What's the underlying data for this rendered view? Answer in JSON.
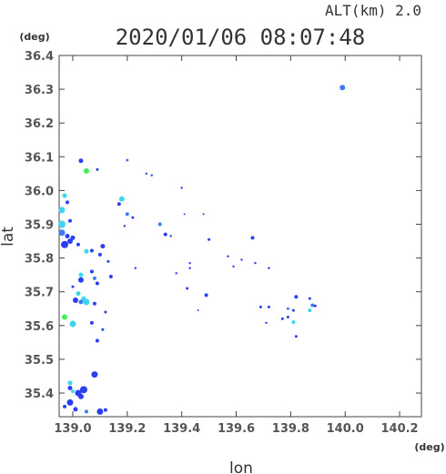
{
  "chart_data": {
    "type": "scatter",
    "title": "2020/01/06 08:07:48",
    "subtitle": "ALT(km)  2.0",
    "xlabel": "lon",
    "ylabel": "lat",
    "x_unit": "(deg)",
    "y_unit": "(deg)",
    "xlim": [
      138.95,
      140.28
    ],
    "ylim": [
      35.33,
      36.4
    ],
    "x_ticks": [
      "139.0",
      "139.2",
      "139.4",
      "139.6",
      "139.8",
      "140.0",
      "140.2"
    ],
    "y_ticks": [
      "36.4",
      "36.3",
      "36.2",
      "36.1",
      "36.0",
      "35.9",
      "35.8",
      "35.7",
      "35.6",
      "35.5",
      "35.4"
    ],
    "grid": false,
    "colors": {
      "blue": "#2b3ff0",
      "mid": "#3b7cf0",
      "cyan": "#3fd4f0",
      "green": "#44ee55"
    },
    "points": [
      {
        "x": 139.99,
        "y": 36.305,
        "s": 3,
        "c": "mid"
      },
      {
        "x": 139.03,
        "y": 36.088,
        "s": 2.5,
        "c": "blue"
      },
      {
        "x": 139.05,
        "y": 36.058,
        "s": 3,
        "c": "green"
      },
      {
        "x": 139.09,
        "y": 36.062,
        "s": 1.5,
        "c": "blue"
      },
      {
        "x": 139.2,
        "y": 36.09,
        "s": 1.5,
        "c": "mid"
      },
      {
        "x": 139.27,
        "y": 36.05,
        "s": 1.2,
        "c": "blue"
      },
      {
        "x": 139.29,
        "y": 36.045,
        "s": 1.2,
        "c": "blue"
      },
      {
        "x": 139.4,
        "y": 36.008,
        "s": 1.2,
        "c": "blue"
      },
      {
        "x": 138.97,
        "y": 35.985,
        "s": 2.5,
        "c": "cyan"
      },
      {
        "x": 138.98,
        "y": 35.965,
        "s": 2,
        "c": "blue"
      },
      {
        "x": 138.96,
        "y": 35.942,
        "s": 3.5,
        "c": "cyan"
      },
      {
        "x": 138.96,
        "y": 35.9,
        "s": 4,
        "c": "cyan"
      },
      {
        "x": 138.99,
        "y": 35.91,
        "s": 2,
        "c": "blue"
      },
      {
        "x": 138.96,
        "y": 35.875,
        "s": 3.5,
        "c": "mid"
      },
      {
        "x": 138.98,
        "y": 35.865,
        "s": 2.5,
        "c": "blue"
      },
      {
        "x": 139.0,
        "y": 35.86,
        "s": 2.5,
        "c": "blue"
      },
      {
        "x": 138.97,
        "y": 35.84,
        "s": 4,
        "c": "blue"
      },
      {
        "x": 138.99,
        "y": 35.85,
        "s": 3,
        "c": "blue"
      },
      {
        "x": 139.02,
        "y": 35.84,
        "s": 2,
        "c": "blue"
      },
      {
        "x": 139.05,
        "y": 35.82,
        "s": 2.5,
        "c": "cyan"
      },
      {
        "x": 139.07,
        "y": 35.822,
        "s": 2,
        "c": "blue"
      },
      {
        "x": 139.11,
        "y": 35.835,
        "s": 2.5,
        "c": "blue"
      },
      {
        "x": 139.1,
        "y": 35.81,
        "s": 2,
        "c": "blue"
      },
      {
        "x": 139.13,
        "y": 35.79,
        "s": 1.5,
        "c": "blue"
      },
      {
        "x": 139.18,
        "y": 35.975,
        "s": 3,
        "c": "cyan"
      },
      {
        "x": 139.17,
        "y": 35.96,
        "s": 2,
        "c": "blue"
      },
      {
        "x": 139.2,
        "y": 35.93,
        "s": 2,
        "c": "mid"
      },
      {
        "x": 139.22,
        "y": 35.92,
        "s": 1.5,
        "c": "blue"
      },
      {
        "x": 139.19,
        "y": 35.895,
        "s": 1.2,
        "c": "blue"
      },
      {
        "x": 139.32,
        "y": 35.9,
        "s": 2,
        "c": "mid"
      },
      {
        "x": 139.34,
        "y": 35.87,
        "s": 2,
        "c": "blue"
      },
      {
        "x": 139.36,
        "y": 35.865,
        "s": 1.2,
        "c": "blue"
      },
      {
        "x": 139.41,
        "y": 35.93,
        "s": 1,
        "c": "blue"
      },
      {
        "x": 139.48,
        "y": 35.93,
        "s": 1,
        "c": "blue"
      },
      {
        "x": 139.5,
        "y": 35.855,
        "s": 1.5,
        "c": "blue"
      },
      {
        "x": 139.66,
        "y": 35.86,
        "s": 2,
        "c": "blue"
      },
      {
        "x": 139.23,
        "y": 35.77,
        "s": 1.2,
        "c": "blue"
      },
      {
        "x": 139.43,
        "y": 35.785,
        "s": 1.2,
        "c": "blue"
      },
      {
        "x": 139.43,
        "y": 35.77,
        "s": 1.2,
        "c": "blue"
      },
      {
        "x": 139.38,
        "y": 35.755,
        "s": 1.2,
        "c": "blue"
      },
      {
        "x": 139.57,
        "y": 35.805,
        "s": 1.2,
        "c": "blue"
      },
      {
        "x": 139.62,
        "y": 35.795,
        "s": 1.2,
        "c": "blue"
      },
      {
        "x": 139.67,
        "y": 35.785,
        "s": 1.2,
        "c": "blue"
      },
      {
        "x": 139.59,
        "y": 35.775,
        "s": 1.2,
        "c": "blue"
      },
      {
        "x": 139.72,
        "y": 35.77,
        "s": 1.2,
        "c": "blue"
      },
      {
        "x": 139.07,
        "y": 35.76,
        "s": 2,
        "c": "blue"
      },
      {
        "x": 139.03,
        "y": 35.75,
        "s": 2.5,
        "c": "cyan"
      },
      {
        "x": 139.03,
        "y": 35.735,
        "s": 3,
        "c": "blue"
      },
      {
        "x": 139.08,
        "y": 35.74,
        "s": 2,
        "c": "mid"
      },
      {
        "x": 139.09,
        "y": 35.725,
        "s": 2,
        "c": "blue"
      },
      {
        "x": 139.14,
        "y": 35.745,
        "s": 2,
        "c": "blue"
      },
      {
        "x": 139.0,
        "y": 35.715,
        "s": 1.5,
        "c": "blue"
      },
      {
        "x": 139.02,
        "y": 35.695,
        "s": 2.5,
        "c": "cyan"
      },
      {
        "x": 139.04,
        "y": 35.68,
        "s": 2.5,
        "c": "cyan"
      },
      {
        "x": 139.01,
        "y": 35.675,
        "s": 3,
        "c": "blue"
      },
      {
        "x": 139.03,
        "y": 35.67,
        "s": 2.5,
        "c": "mid"
      },
      {
        "x": 139.05,
        "y": 35.67,
        "s": 3.5,
        "c": "cyan"
      },
      {
        "x": 139.08,
        "y": 35.665,
        "s": 2,
        "c": "blue"
      },
      {
        "x": 139.12,
        "y": 35.64,
        "s": 1.5,
        "c": "blue"
      },
      {
        "x": 139.42,
        "y": 35.71,
        "s": 1.5,
        "c": "blue"
      },
      {
        "x": 139.49,
        "y": 35.69,
        "s": 2,
        "c": "blue"
      },
      {
        "x": 138.97,
        "y": 35.625,
        "s": 3,
        "c": "green"
      },
      {
        "x": 139.0,
        "y": 35.605,
        "s": 3.5,
        "c": "cyan"
      },
      {
        "x": 139.07,
        "y": 35.608,
        "s": 2,
        "c": "blue"
      },
      {
        "x": 139.11,
        "y": 35.588,
        "s": 1.5,
        "c": "blue"
      },
      {
        "x": 139.09,
        "y": 35.555,
        "s": 2,
        "c": "blue"
      },
      {
        "x": 139.46,
        "y": 35.645,
        "s": 1,
        "c": "blue"
      },
      {
        "x": 139.69,
        "y": 35.655,
        "s": 1.5,
        "c": "blue"
      },
      {
        "x": 139.72,
        "y": 35.655,
        "s": 1.5,
        "c": "blue"
      },
      {
        "x": 139.71,
        "y": 35.608,
        "s": 1.2,
        "c": "blue"
      },
      {
        "x": 139.77,
        "y": 35.62,
        "s": 1.5,
        "c": "blue"
      },
      {
        "x": 139.79,
        "y": 35.65,
        "s": 1.5,
        "c": "mid"
      },
      {
        "x": 139.81,
        "y": 35.645,
        "s": 1.5,
        "c": "blue"
      },
      {
        "x": 139.82,
        "y": 35.685,
        "s": 2,
        "c": "blue"
      },
      {
        "x": 139.81,
        "y": 35.61,
        "s": 2,
        "c": "cyan"
      },
      {
        "x": 139.79,
        "y": 35.625,
        "s": 1.5,
        "c": "blue"
      },
      {
        "x": 139.82,
        "y": 35.568,
        "s": 1.5,
        "c": "blue"
      },
      {
        "x": 139.87,
        "y": 35.68,
        "s": 1.5,
        "c": "blue"
      },
      {
        "x": 139.87,
        "y": 35.645,
        "s": 2,
        "c": "cyan"
      },
      {
        "x": 139.88,
        "y": 35.66,
        "s": 2,
        "c": "mid"
      },
      {
        "x": 139.89,
        "y": 35.658,
        "s": 1.5,
        "c": "blue"
      },
      {
        "x": 139.08,
        "y": 35.455,
        "s": 3.5,
        "c": "blue"
      },
      {
        "x": 138.99,
        "y": 35.43,
        "s": 2.5,
        "c": "cyan"
      },
      {
        "x": 138.99,
        "y": 35.415,
        "s": 2.5,
        "c": "blue"
      },
      {
        "x": 139.0,
        "y": 35.405,
        "s": 2,
        "c": "cyan"
      },
      {
        "x": 139.02,
        "y": 35.4,
        "s": 3.5,
        "c": "blue"
      },
      {
        "x": 139.04,
        "y": 35.41,
        "s": 4,
        "c": "blue"
      },
      {
        "x": 139.03,
        "y": 35.39,
        "s": 3,
        "c": "blue"
      },
      {
        "x": 138.99,
        "y": 35.372,
        "s": 3.5,
        "c": "blue"
      },
      {
        "x": 138.97,
        "y": 35.36,
        "s": 2,
        "c": "blue"
      },
      {
        "x": 139.01,
        "y": 35.352,
        "s": 2.5,
        "c": "blue"
      },
      {
        "x": 139.05,
        "y": 35.345,
        "s": 2,
        "c": "mid"
      },
      {
        "x": 139.1,
        "y": 35.345,
        "s": 3.5,
        "c": "blue"
      },
      {
        "x": 139.12,
        "y": 35.35,
        "s": 2,
        "c": "blue"
      }
    ]
  }
}
